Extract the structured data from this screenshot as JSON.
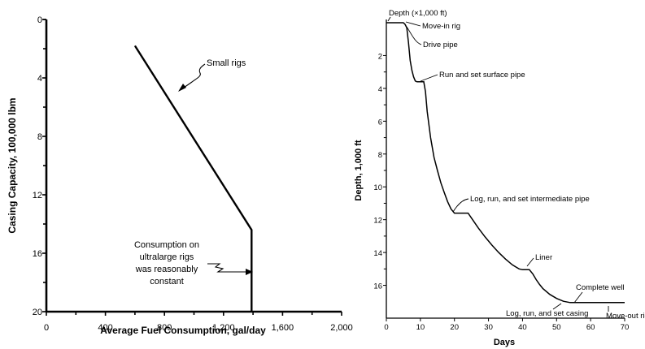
{
  "chart_data": [
    {
      "type": "line",
      "title": "",
      "xlabel": "Average Fuel Consumption, gal/day",
      "ylabel": "Casing Capacity, 100,000 lbm",
      "xlim": [
        0,
        2000
      ],
      "ylim": [
        0,
        20
      ],
      "y_inverted": true,
      "x_ticks": [
        "0",
        "400",
        "800",
        "1,200",
        "1,600",
        "2,000"
      ],
      "x_tick_values": [
        0,
        400,
        800,
        1200,
        1600,
        2000
      ],
      "y_ticks": [
        "0",
        "4",
        "8",
        "12",
        "16",
        "20"
      ],
      "y_tick_values": [
        0,
        4,
        8,
        12,
        16,
        20
      ],
      "series": [
        {
          "x": [
            600,
            1390,
            1390
          ],
          "y": [
            1.8,
            14.4,
            20
          ]
        }
      ],
      "annotations": [
        {
          "text": "Small rigs"
        },
        {
          "lines": [
            "Consumption on",
            "ultralarge rigs",
            "was reasonably",
            "constant"
          ]
        }
      ]
    },
    {
      "type": "line",
      "title": "",
      "xlabel": "Days",
      "ylabel": "Depth, 1,000 ft",
      "xlim": [
        0,
        70
      ],
      "ylim": [
        0,
        18
      ],
      "y_inverted": true,
      "x_ticks": [
        "0",
        "10",
        "20",
        "30",
        "40",
        "50",
        "60",
        "70"
      ],
      "x_tick_values": [
        0,
        10,
        20,
        30,
        40,
        50,
        60,
        70
      ],
      "y_ticks": [
        "2",
        "4",
        "6",
        "8",
        "10",
        "12",
        "14",
        "16"
      ],
      "y_tick_values": [
        2,
        4,
        6,
        8,
        10,
        12,
        14,
        16
      ],
      "series": [
        {
          "x": [
            0,
            2,
            3,
            4,
            5,
            5.5,
            6,
            6.5,
            7,
            7.5,
            8,
            8.5,
            9,
            10,
            10.5,
            11,
            11.5,
            12,
            13,
            14,
            15,
            16,
            17,
            18,
            19,
            20,
            21,
            23,
            24,
            25,
            27,
            29,
            31,
            33,
            35,
            37,
            39,
            40,
            41,
            42,
            43,
            44,
            45,
            46,
            48,
            50,
            52,
            54,
            56,
            58,
            60,
            62,
            65,
            68,
            70
          ],
          "y": [
            0,
            0,
            0,
            0,
            0,
            0.1,
            0.3,
            1.2,
            2.3,
            2.9,
            3.3,
            3.55,
            3.6,
            3.6,
            3.6,
            3.6,
            4.2,
            5.4,
            7.0,
            8.2,
            9.0,
            9.75,
            10.35,
            10.9,
            11.35,
            11.6,
            11.6,
            11.6,
            11.6,
            11.9,
            12.5,
            13.05,
            13.55,
            14.0,
            14.4,
            14.75,
            15.0,
            15.05,
            15.05,
            15.05,
            15.3,
            15.65,
            15.95,
            16.2,
            16.55,
            16.8,
            16.97,
            17.05,
            17.05,
            17.05,
            17.05,
            17.05,
            17.05,
            17.05,
            17.05
          ]
        }
      ],
      "annotations": [
        {
          "text": "Depth (×1,000 ft)"
        },
        {
          "text": "Move-in rig"
        },
        {
          "text": "Drive pipe"
        },
        {
          "text": "Run and set surface pipe"
        },
        {
          "text": "Log, run, and set intermediate pipe"
        },
        {
          "text": "Liner"
        },
        {
          "text": "Complete well"
        },
        {
          "text": "Log, run, and set casing"
        },
        {
          "text": "Move-out rig"
        }
      ]
    }
  ]
}
